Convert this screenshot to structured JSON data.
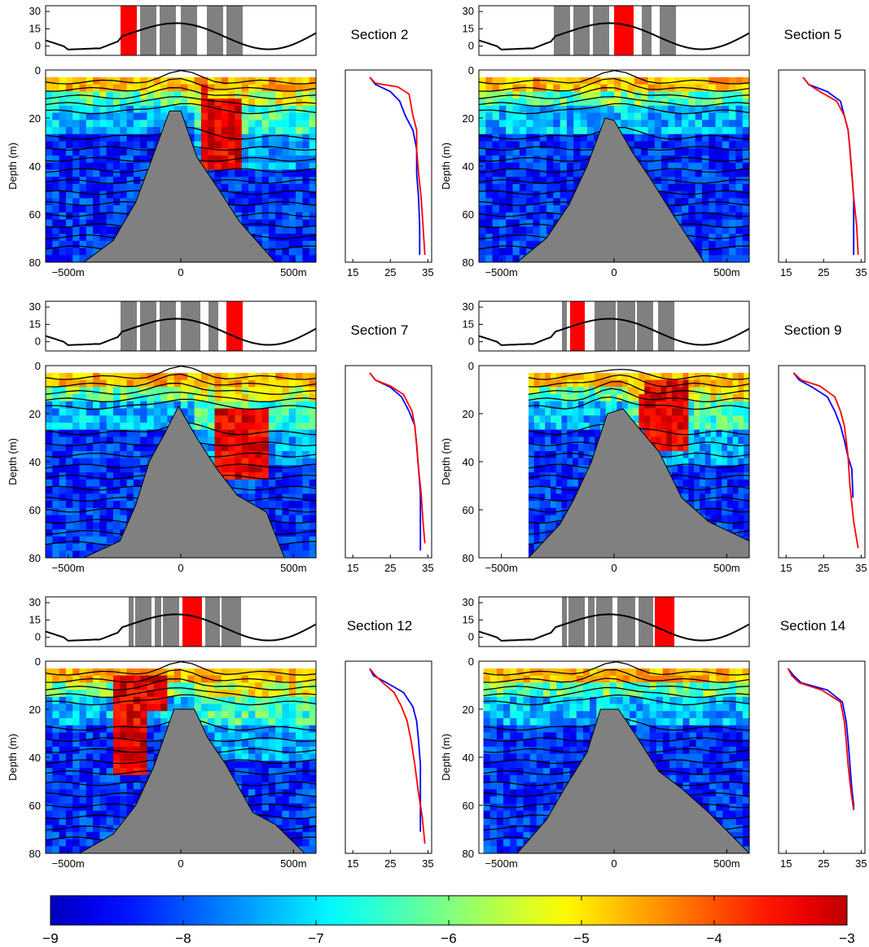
{
  "figure": {
    "colorbar": {
      "ticks": [
        "−9",
        "−8",
        "−7",
        "−6",
        "−5",
        "−4",
        "−3"
      ],
      "range": [
        -9,
        -3
      ]
    },
    "axis_labels": {
      "depth": "Depth (m)"
    }
  },
  "chart_data": [
    {
      "type": "heatmap",
      "title": "Section 2",
      "ylabel": "Depth (m)",
      "x_ticks": [
        "−500m",
        "0",
        "500m"
      ],
      "y_ticks": [
        "0",
        "20",
        "40",
        "60",
        "80"
      ],
      "xlim": [
        -600,
        600
      ],
      "ylim": [
        80,
        0
      ],
      "tide": {
        "y_ticks": [
          "30",
          "15",
          "0"
        ],
        "highlight": "red",
        "gray_bands": 5
      },
      "seabed_peak_depth": 17,
      "profile": {
        "type": "line",
        "x_ticks": [
          "15",
          "25",
          "35"
        ],
        "series": [
          {
            "color": "blue",
            "x": [
              19.5,
              21,
              25,
              27.5,
              29,
              31,
              32,
              32,
              32.5,
              32.8,
              32.8
            ],
            "y": [
              3,
              6,
              9,
              13,
              19,
              25,
              33,
              43,
              53,
              65,
              77
            ]
          },
          {
            "color": "red",
            "x": [
              19.5,
              21,
              27,
              30,
              31,
              32,
              32,
              32.5,
              33.2,
              33.7,
              34.2
            ],
            "y": [
              3,
              5.5,
              7,
              10,
              19,
              25,
              33,
              43,
              53,
              65,
              77
            ]
          }
        ]
      }
    },
    {
      "type": "heatmap",
      "title": "Section 5",
      "ylabel": "Depth (m)",
      "x_ticks": [
        "−500m",
        "0",
        "500m"
      ],
      "y_ticks": [
        "0",
        "20",
        "40",
        "60",
        "80"
      ],
      "xlim": [
        -600,
        600
      ],
      "ylim": [
        80,
        0
      ],
      "tide": {
        "y_ticks": [
          "30",
          "15",
          "0"
        ],
        "highlight": "red",
        "gray_bands": 5
      },
      "seabed_peak_depth": 20,
      "profile": {
        "type": "line",
        "x_ticks": [
          "15",
          "25",
          "35"
        ],
        "series": [
          {
            "color": "blue",
            "x": [
              19.5,
              21,
              26,
              29.5,
              30.5,
              31.5,
              32,
              32.5,
              33,
              33,
              33
            ],
            "y": [
              3,
              6,
              9,
              13,
              19,
              25,
              33,
              43,
              53,
              65,
              77
            ]
          },
          {
            "color": "red",
            "x": [
              19.5,
              21,
              24,
              28.5,
              30.5,
              31.5,
              32,
              32.5,
              33,
              33.8,
              34.2
            ],
            "y": [
              3,
              6,
              9,
              13,
              19,
              25,
              33,
              43,
              53,
              65,
              77
            ]
          }
        ]
      }
    },
    {
      "type": "heatmap",
      "title": "Section 7",
      "ylabel": "Depth (m)",
      "x_ticks": [
        "−500m",
        "0",
        "500m"
      ],
      "y_ticks": [
        "0",
        "20",
        "40",
        "60",
        "80"
      ],
      "xlim": [
        -600,
        600
      ],
      "ylim": [
        80,
        0
      ],
      "tide": {
        "y_ticks": [
          "30",
          "15",
          "0"
        ],
        "highlight": "red",
        "gray_bands": 5
      },
      "seabed_peak_depth": 17,
      "profile": {
        "type": "line",
        "x_ticks": [
          "15",
          "25",
          "35"
        ],
        "series": [
          {
            "color": "blue",
            "x": [
              19.5,
              21,
              25,
              28,
              30,
              31.5,
              32,
              32.5,
              33,
              33,
              33
            ],
            "y": [
              3,
              6,
              9,
              13,
              19,
              25,
              33,
              43,
              53,
              65,
              77
            ]
          },
          {
            "color": "red",
            "x": [
              19.5,
              21,
              25,
              28.5,
              30.8,
              31.5,
              32,
              32.5,
              33.2,
              33.7,
              34.2
            ],
            "y": [
              3,
              6,
              8.5,
              12,
              19,
              25,
              33,
              43,
              53,
              65,
              74
            ]
          }
        ]
      }
    },
    {
      "type": "heatmap",
      "title": "Section 9",
      "ylabel": "Depth (m)",
      "x_ticks": [
        "−500m",
        "0",
        "500m"
      ],
      "y_ticks": [
        "0",
        "20",
        "40",
        "60",
        "80"
      ],
      "xlim": [
        -600,
        600
      ],
      "ylim": [
        80,
        0
      ],
      "tide": {
        "y_ticks": [
          "30",
          "15",
          "0"
        ],
        "highlight": "red",
        "gray_bands": 6
      },
      "seabed_peak_depth": 18,
      "profile": {
        "type": "line",
        "x_ticks": [
          "15",
          "25",
          "35"
        ],
        "series": [
          {
            "color": "blue",
            "x": [
              17,
              18.5,
              22,
              26,
              28,
              29.5,
              30.5,
              31.5,
              32.5,
              32.8
            ],
            "y": [
              3,
              6,
              9,
              13,
              19,
              25,
              31,
              38,
              43,
              55
            ]
          },
          {
            "color": "red",
            "x": [
              17,
              19,
              24,
              28,
              29.5,
              30.5,
              31,
              31.5,
              32,
              33,
              34.2
            ],
            "y": [
              3,
              6,
              8.5,
              13,
              19,
              25,
              31,
              38,
              50,
              65,
              76
            ]
          }
        ]
      }
    },
    {
      "type": "heatmap",
      "title": "Section 12",
      "ylabel": "Depth (m)",
      "x_ticks": [
        "−500m",
        "0",
        "500m"
      ],
      "y_ticks": [
        "0",
        "20",
        "40",
        "60",
        "80"
      ],
      "xlim": [
        -600,
        600
      ],
      "ylim": [
        80,
        0
      ],
      "tide": {
        "y_ticks": [
          "30",
          "15",
          "0"
        ],
        "highlight": "red",
        "gray_bands": 6
      },
      "seabed_peak_depth": 20,
      "profile": {
        "type": "line",
        "x_ticks": [
          "15",
          "25",
          "35"
        ],
        "series": [
          {
            "color": "blue",
            "x": [
              19.5,
              20.5,
              24,
              28.5,
              31,
              32,
              32.5,
              33,
              33,
              33
            ],
            "y": [
              3,
              6,
              9,
              13,
              19,
              25,
              33,
              43,
              55,
              71
            ]
          },
          {
            "color": "red",
            "x": [
              19.5,
              21,
              23,
              26,
              28,
              29.5,
              30.5,
              31.5,
              32.5,
              33.5,
              34.2
            ],
            "y": [
              3,
              6,
              9,
              13,
              19,
              25,
              33,
              43,
              55,
              65,
              76
            ]
          }
        ]
      }
    },
    {
      "type": "heatmap",
      "title": "Section 14",
      "ylabel": "Depth (m)",
      "x_ticks": [
        "−500m",
        "0",
        "500m"
      ],
      "y_ticks": [
        "0",
        "20",
        "40",
        "60",
        "80"
      ],
      "xlim": [
        -600,
        600
      ],
      "ylim": [
        80,
        0
      ],
      "tide": {
        "y_ticks": [
          "30",
          "15",
          "0"
        ],
        "highlight": "red",
        "gray_bands": 6
      },
      "seabed_peak_depth": 18,
      "profile": {
        "type": "line",
        "x_ticks": [
          "15",
          "25",
          "35"
        ],
        "series": [
          {
            "color": "blue",
            "x": [
              15.5,
              17,
              19,
              26,
              30,
              31,
              31.5,
              32,
              32.5,
              33,
              33
            ],
            "y": [
              3,
              6,
              9,
              12,
              17,
              25,
              33,
              43,
              53,
              60,
              62
            ]
          },
          {
            "color": "red",
            "x": [
              15.5,
              16.5,
              18.5,
              24.5,
              29.5,
              30.5,
              31,
              31.5,
              32.2,
              32.8,
              33
            ],
            "y": [
              3,
              6,
              9,
              12,
              17,
              25,
              33,
              43,
              53,
              60,
              62
            ]
          }
        ]
      }
    }
  ]
}
